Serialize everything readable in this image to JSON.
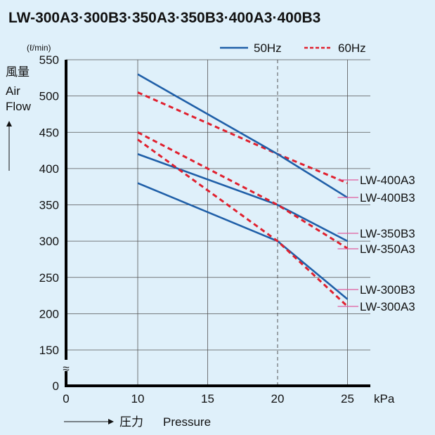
{
  "chart_data": {
    "type": "line",
    "title": "LW-300A3·300B3·350A3·350B3·400A3·400B3",
    "unit_label": "(ℓ/min)",
    "ylabel_jp": "風量",
    "ylabel_en_1": "Air",
    "ylabel_en_2": "Flow",
    "ylabel_arrow": "↑",
    "xlabel_jp": "圧力",
    "xlabel_en": "Pressure",
    "x_unit": "kPa",
    "x_ticks": [
      "0",
      "10",
      "15",
      "20",
      "25"
    ],
    "y_ticks": [
      "550",
      "500",
      "450",
      "400",
      "350",
      "300",
      "250",
      "200",
      "150",
      "0"
    ],
    "axis_break": "≈",
    "xlim": [
      0,
      25
    ],
    "ylim": [
      0,
      550
    ],
    "grid": true,
    "legend_placement": "top-right",
    "legend": [
      {
        "name": "50Hz",
        "style": "solid",
        "color": "#1f5fa8"
      },
      {
        "name": "60Hz",
        "style": "dashed",
        "color": "#e0202e"
      }
    ],
    "series": [
      {
        "name": "LW-400A3",
        "freq": "60Hz",
        "x": [
          10,
          20,
          25
        ],
        "y": [
          505,
          420,
          380
        ]
      },
      {
        "name": "LW-400B3",
        "freq": "50Hz",
        "x": [
          10,
          20,
          25
        ],
        "y": [
          530,
          420,
          360
        ]
      },
      {
        "name": "LW-350B3",
        "freq": "50Hz",
        "x": [
          10,
          20,
          25
        ],
        "y": [
          420,
          350,
          300
        ]
      },
      {
        "name": "LW-350A3",
        "freq": "60Hz",
        "x": [
          10,
          20,
          25
        ],
        "y": [
          450,
          350,
          290
        ]
      },
      {
        "name": "LW-300B3",
        "freq": "50Hz",
        "x": [
          10,
          20,
          25
        ],
        "y": [
          380,
          300,
          220
        ]
      },
      {
        "name": "LW-300A3",
        "freq": "60Hz",
        "x": [
          10,
          20,
          25
        ],
        "y": [
          440,
          300,
          210
        ]
      }
    ]
  }
}
